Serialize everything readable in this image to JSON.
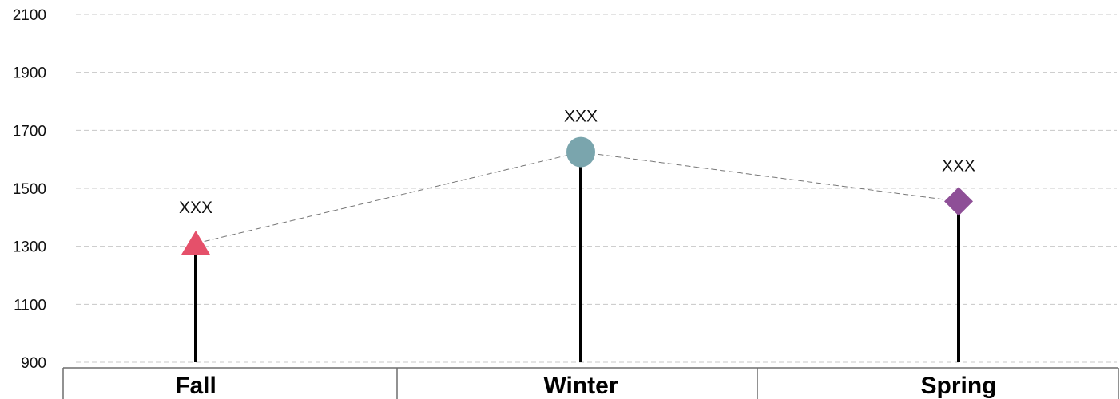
{
  "chart_data": {
    "type": "line",
    "categories": [
      "Fall",
      "Winter",
      "Spring"
    ],
    "values": [
      1310,
      1625,
      1455
    ],
    "data_labels": [
      "XXX",
      "XXX",
      "XXX"
    ],
    "markers": [
      "triangle",
      "circle",
      "diamond"
    ],
    "colors": [
      "#e5506a",
      "#7aa5ad",
      "#8e4f97"
    ],
    "yticks": [
      900,
      1100,
      1300,
      1500,
      1700,
      1900,
      2100
    ],
    "ylim": [
      900,
      2100
    ],
    "grid": true,
    "legend": "none"
  }
}
